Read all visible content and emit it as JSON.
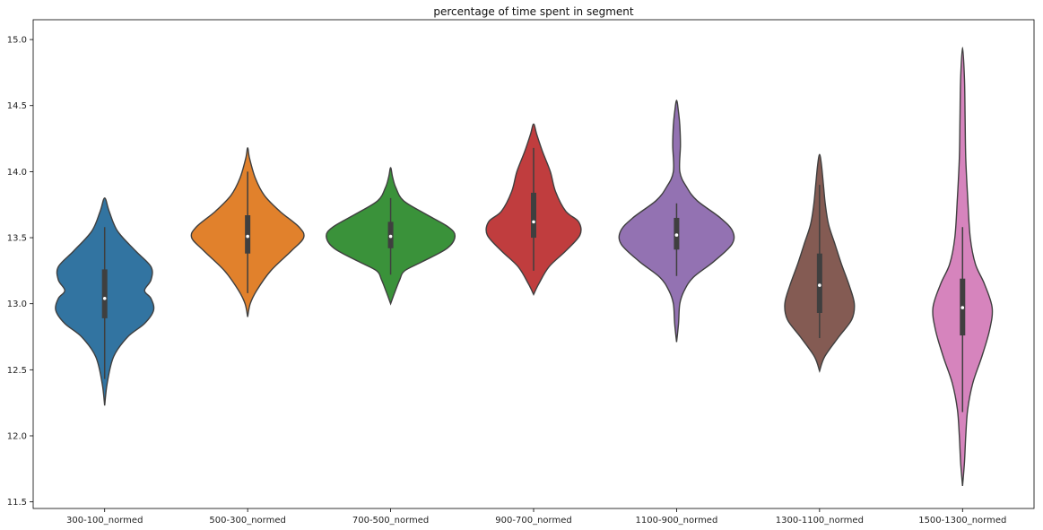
{
  "chart_data": {
    "type": "violin",
    "title": "percentage of time spent in segment",
    "xlabel": "",
    "ylabel": "",
    "ylim": [
      11.45,
      15.15
    ],
    "yticks": [
      11.5,
      12.0,
      12.5,
      13.0,
      13.5,
      14.0,
      14.5,
      15.0
    ],
    "ytick_labels": [
      "11.5",
      "12.0",
      "12.5",
      "13.0",
      "13.5",
      "14.0",
      "14.5",
      "15.0"
    ],
    "categories": [
      "300-100_normed",
      "500-300_normed",
      "700-500_normed",
      "900-700_normed",
      "1100-900_normed",
      "1300-1100_normed",
      "1500-1300_normed"
    ],
    "colors": [
      "#3274a1",
      "#e1812c",
      "#3a923a",
      "#c03d3e",
      "#9372b2",
      "#845b53",
      "#d684bd"
    ],
    "grid": false,
    "violins": [
      {
        "category": "300-100_normed",
        "min": 12.23,
        "max": 13.8,
        "q1": 12.89,
        "median": 13.04,
        "q3": 13.26,
        "whisker_low": 12.43,
        "whisker_high": 13.58,
        "profile": [
          [
            12.23,
            0.0
          ],
          [
            12.4,
            0.04
          ],
          [
            12.6,
            0.14
          ],
          [
            12.75,
            0.36
          ],
          [
            12.85,
            0.62
          ],
          [
            12.95,
            0.76
          ],
          [
            13.04,
            0.72
          ],
          [
            13.1,
            0.62
          ],
          [
            13.18,
            0.72
          ],
          [
            13.28,
            0.72
          ],
          [
            13.4,
            0.48
          ],
          [
            13.55,
            0.2
          ],
          [
            13.7,
            0.07
          ],
          [
            13.8,
            0.0
          ]
        ]
      },
      {
        "category": "500-300_normed",
        "min": 12.9,
        "max": 14.18,
        "q1": 13.38,
        "median": 13.51,
        "q3": 13.67,
        "whisker_low": 13.08,
        "whisker_high": 14.0,
        "profile": [
          [
            12.9,
            0.0
          ],
          [
            13.0,
            0.04
          ],
          [
            13.1,
            0.14
          ],
          [
            13.25,
            0.36
          ],
          [
            13.4,
            0.68
          ],
          [
            13.5,
            0.87
          ],
          [
            13.58,
            0.8
          ],
          [
            13.7,
            0.5
          ],
          [
            13.82,
            0.26
          ],
          [
            13.95,
            0.12
          ],
          [
            14.1,
            0.03
          ],
          [
            14.18,
            0.0
          ]
        ]
      },
      {
        "category": "700-500_normed",
        "min": 13.0,
        "max": 14.03,
        "q1": 13.42,
        "median": 13.51,
        "q3": 13.62,
        "whisker_low": 13.22,
        "whisker_high": 13.8,
        "profile": [
          [
            13.0,
            0.0
          ],
          [
            13.08,
            0.06
          ],
          [
            13.18,
            0.14
          ],
          [
            13.25,
            0.22
          ],
          [
            13.32,
            0.5
          ],
          [
            13.42,
            0.88
          ],
          [
            13.51,
            1.0
          ],
          [
            13.58,
            0.9
          ],
          [
            13.68,
            0.54
          ],
          [
            13.78,
            0.2
          ],
          [
            13.88,
            0.08
          ],
          [
            13.96,
            0.03
          ],
          [
            14.03,
            0.0
          ]
        ]
      },
      {
        "category": "900-700_normed",
        "min": 13.07,
        "max": 14.36,
        "q1": 13.5,
        "median": 13.62,
        "q3": 13.84,
        "whisker_low": 13.25,
        "whisker_high": 14.18,
        "profile": [
          [
            13.07,
            0.0
          ],
          [
            13.15,
            0.08
          ],
          [
            13.28,
            0.24
          ],
          [
            13.4,
            0.5
          ],
          [
            13.52,
            0.72
          ],
          [
            13.62,
            0.7
          ],
          [
            13.7,
            0.5
          ],
          [
            13.85,
            0.34
          ],
          [
            14.0,
            0.26
          ],
          [
            14.15,
            0.14
          ],
          [
            14.28,
            0.05
          ],
          [
            14.36,
            0.0
          ]
        ]
      },
      {
        "category": "1100-900_normed",
        "min": 12.71,
        "max": 14.54,
        "q1": 13.41,
        "median": 13.52,
        "q3": 13.65,
        "whisker_low": 13.21,
        "whisker_high": 13.76,
        "profile": [
          [
            12.71,
            0.0
          ],
          [
            12.85,
            0.03
          ],
          [
            13.0,
            0.05
          ],
          [
            13.1,
            0.12
          ],
          [
            13.2,
            0.26
          ],
          [
            13.32,
            0.58
          ],
          [
            13.45,
            0.86
          ],
          [
            13.55,
            0.87
          ],
          [
            13.65,
            0.68
          ],
          [
            13.78,
            0.32
          ],
          [
            13.88,
            0.16
          ],
          [
            14.0,
            0.05
          ],
          [
            14.2,
            0.06
          ],
          [
            14.35,
            0.05
          ],
          [
            14.45,
            0.03
          ],
          [
            14.54,
            0.0
          ]
        ]
      },
      {
        "category": "1300-1100_normed",
        "min": 12.49,
        "max": 14.13,
        "q1": 12.93,
        "median": 13.14,
        "q3": 13.38,
        "whisker_low": 12.74,
        "whisker_high": 13.9,
        "profile": [
          [
            12.49,
            0.0
          ],
          [
            12.6,
            0.08
          ],
          [
            12.75,
            0.3
          ],
          [
            12.88,
            0.5
          ],
          [
            13.0,
            0.54
          ],
          [
            13.14,
            0.46
          ],
          [
            13.3,
            0.34
          ],
          [
            13.45,
            0.24
          ],
          [
            13.6,
            0.14
          ],
          [
            13.75,
            0.09
          ],
          [
            13.9,
            0.06
          ],
          [
            14.05,
            0.03
          ],
          [
            14.13,
            0.0
          ]
        ]
      },
      {
        "category": "1500-1300_normed",
        "min": 11.62,
        "max": 14.94,
        "q1": 12.76,
        "median": 12.97,
        "q3": 13.19,
        "whisker_low": 12.18,
        "whisker_high": 13.58,
        "profile": [
          [
            11.62,
            0.0
          ],
          [
            11.8,
            0.03
          ],
          [
            12.0,
            0.05
          ],
          [
            12.2,
            0.08
          ],
          [
            12.4,
            0.16
          ],
          [
            12.6,
            0.3
          ],
          [
            12.8,
            0.42
          ],
          [
            12.97,
            0.46
          ],
          [
            13.15,
            0.34
          ],
          [
            13.3,
            0.2
          ],
          [
            13.5,
            0.12
          ],
          [
            13.8,
            0.08
          ],
          [
            14.1,
            0.05
          ],
          [
            14.4,
            0.04
          ],
          [
            14.7,
            0.03
          ],
          [
            14.94,
            0.0
          ]
        ]
      }
    ]
  }
}
